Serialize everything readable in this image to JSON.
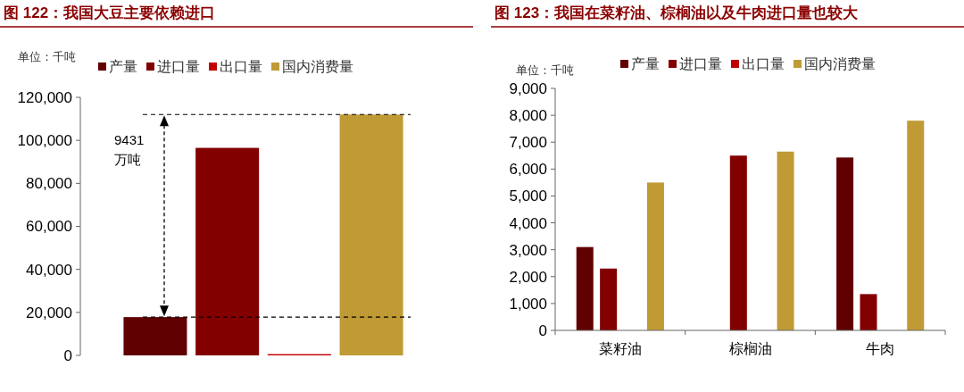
{
  "chart_data": [
    {
      "type": "bar",
      "title": "图 122：我国大豆主要依赖进口",
      "ylabel": "单位：千吨",
      "categories": [
        null
      ],
      "series": [
        {
          "name": "产量",
          "color": "#600000",
          "values": [
            17800
          ]
        },
        {
          "name": "进口量",
          "color": "#820000",
          "values": [
            96500
          ]
        },
        {
          "name": "出口量",
          "color": "#c00000",
          "values": [
            600
          ]
        },
        {
          "name": "国内消费量",
          "color": "#c09a35",
          "values": [
            112000
          ]
        }
      ],
      "ylim": [
        0,
        120000
      ],
      "yticks": [
        0,
        {
          "value": 20000,
          "label": "20,000"
        },
        {
          "value": 40000,
          "label": "40,000"
        },
        {
          "value": 60000,
          "label": "60,000"
        },
        {
          "value": 80000,
          "label": "80,000"
        },
        {
          "value": 100000,
          "label": "100,000"
        },
        {
          "value": 120000,
          "label": "120,000"
        }
      ],
      "ref_lines": [
        {
          "axis": "y",
          "value": 112000,
          "line_style": "dashed",
          "color": "#000000"
        },
        {
          "axis": "y",
          "value": 17800,
          "line_style": "dashed",
          "color": "#000000"
        }
      ],
      "annotations": [
        "9431\n万吨"
      ],
      "legend": "top",
      "grid": false
    },
    {
      "type": "bar",
      "title": "图 123：我国在菜籽油、棕榈油以及牛肉进口量也较大",
      "ylabel": "单位：千吨",
      "categories": [
        "菜籽油",
        "棕榈油",
        "牛肉"
      ],
      "series": [
        {
          "name": "产量",
          "color": "#600000",
          "values": [
            3100,
            null,
            6430
          ]
        },
        {
          "name": "进口量",
          "color": "#820000",
          "values": [
            2300,
            6500,
            1350
          ]
        },
        {
          "name": "出口量",
          "color": "#c00000",
          "values": [
            null,
            null,
            null
          ]
        },
        {
          "name": "国内消费量",
          "color": "#c09a35",
          "values": [
            5500,
            6650,
            7800
          ]
        }
      ],
      "ylim": [
        0,
        9000
      ],
      "yticks": [
        0,
        {
          "value": 1000,
          "label": "1,000"
        },
        {
          "value": 2000,
          "label": "2,000"
        },
        {
          "value": 3000,
          "label": "3,000"
        },
        {
          "value": 4000,
          "label": "4,000"
        },
        {
          "value": 5000,
          "label": "5,000"
        },
        {
          "value": 6000,
          "label": "6,000"
        },
        {
          "value": 7000,
          "label": "7,000"
        },
        {
          "value": 8000,
          "label": "8,000"
        },
        {
          "value": 9000,
          "label": "9,000"
        }
      ],
      "legend": "top",
      "grid": false
    }
  ]
}
